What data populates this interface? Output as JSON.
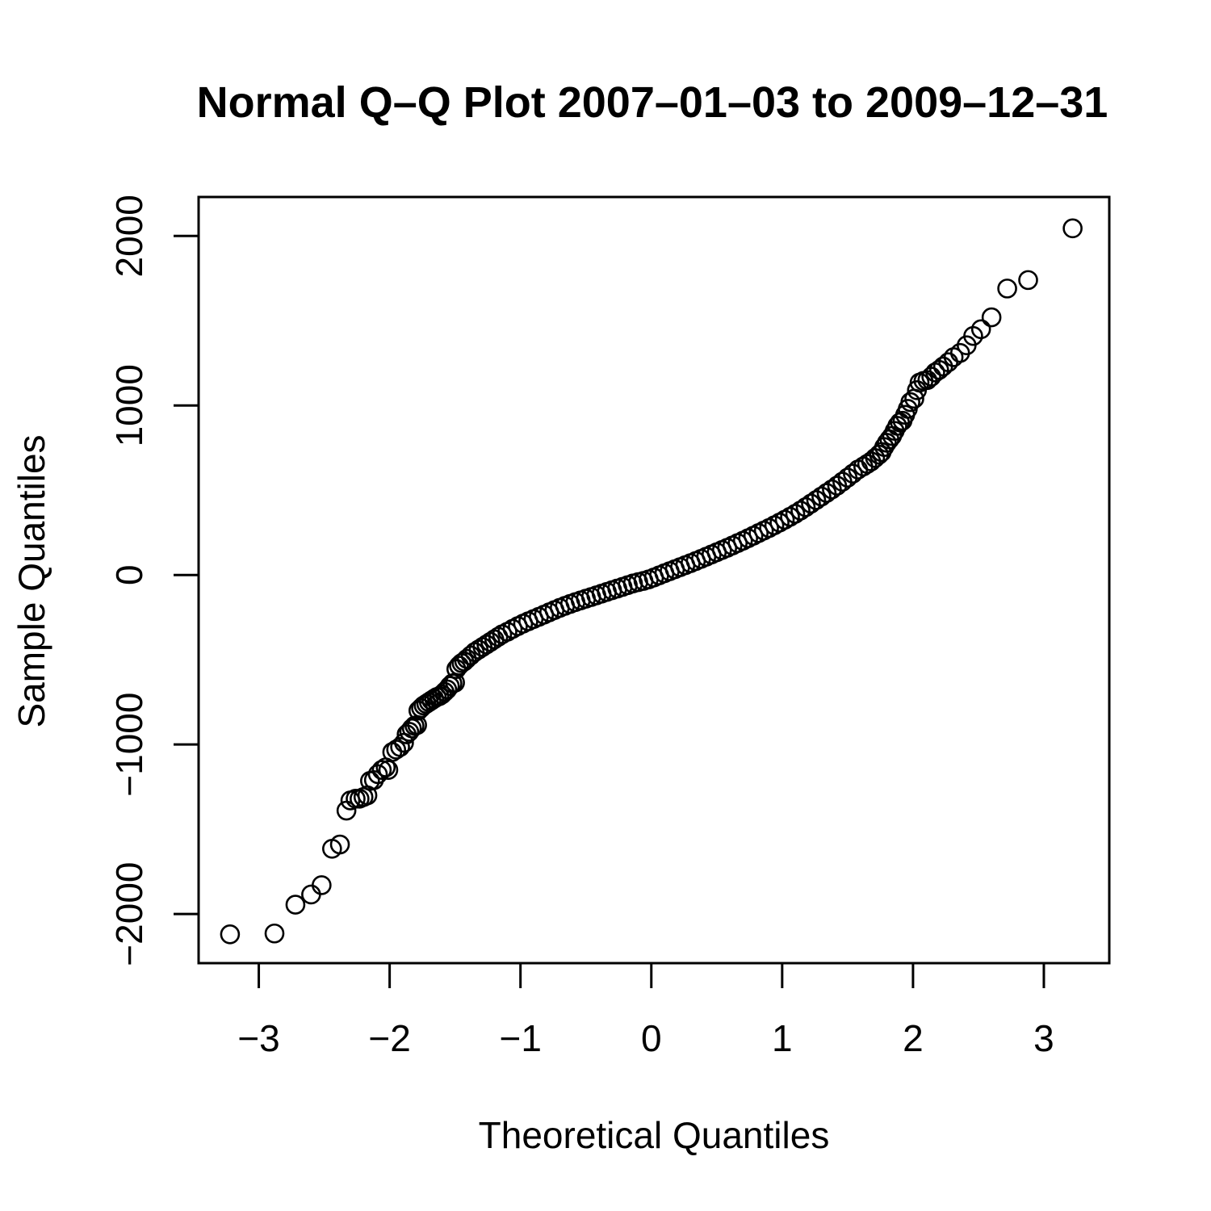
{
  "chart_data": {
    "type": "scatter",
    "title": "Normal Q–Q Plot 2007–01–03 to 2009–12–31",
    "xlabel": "Theoretical Quantiles",
    "ylabel": "Sample Quantiles",
    "xlim": [
      -3.46,
      3.5
    ],
    "ylim": [
      -2290,
      2230
    ],
    "xticks": [
      -3,
      -2,
      -1,
      0,
      1,
      2,
      3
    ],
    "xtick_labels": [
      "−3",
      "−2",
      "−1",
      "0",
      "1",
      "2",
      "3"
    ],
    "yticks": [
      -2000,
      -1000,
      0,
      1000,
      2000
    ],
    "ytick_labels": [
      "−2000",
      "−1000",
      "0",
      "1000",
      "2000"
    ],
    "grid": false,
    "legend": "none",
    "colors": {
      "points": "#000000",
      "axes": "#000000",
      "background": "#ffffff"
    },
    "series": [
      {
        "points": [
          [
            -3.22,
            -2120
          ],
          [
            -2.88,
            -2115
          ],
          [
            -2.72,
            -1945
          ],
          [
            -2.6,
            -1885
          ],
          [
            -2.52,
            -1830
          ],
          [
            -2.44,
            -1615
          ],
          [
            -2.38,
            -1590
          ],
          [
            -2.33,
            -1390
          ],
          [
            -2.3,
            -1330
          ],
          [
            -2.26,
            -1320
          ],
          [
            -2.23,
            -1320
          ],
          [
            -2.2,
            -1310
          ],
          [
            -2.17,
            -1300
          ],
          [
            -2.15,
            -1215
          ],
          [
            -2.12,
            -1210
          ],
          [
            -2.09,
            -1175
          ],
          [
            -2.06,
            -1150
          ],
          [
            -2.03,
            -1135
          ],
          [
            -2.01,
            -1150
          ],
          [
            -1.98,
            -1045
          ],
          [
            -1.95,
            -1030
          ],
          [
            -1.92,
            -1015
          ],
          [
            -1.89,
            -990
          ],
          [
            -1.87,
            -940
          ],
          [
            -1.85,
            -925
          ],
          [
            -1.83,
            -905
          ],
          [
            -1.81,
            -890
          ],
          [
            -1.79,
            -885
          ],
          [
            -1.78,
            -800
          ],
          [
            -1.76,
            -785
          ],
          [
            -1.74,
            -770
          ],
          [
            -1.72,
            -760
          ],
          [
            -1.7,
            -750
          ],
          [
            -1.68,
            -740
          ],
          [
            -1.66,
            -730
          ],
          [
            -1.64,
            -720
          ],
          [
            -1.62,
            -715
          ],
          [
            -1.6,
            -705
          ],
          [
            -1.58,
            -690
          ],
          [
            -1.56,
            -675
          ],
          [
            -1.54,
            -655
          ],
          [
            -1.52,
            -640
          ],
          [
            -1.5,
            -635
          ],
          [
            -1.49,
            -555
          ],
          [
            -1.47,
            -535
          ],
          [
            -1.45,
            -520
          ],
          [
            -1.43,
            -510
          ],
          [
            -1.41,
            -495
          ],
          [
            -1.38,
            -475
          ],
          [
            -1.35,
            -455
          ],
          [
            -1.32,
            -440
          ],
          [
            -1.29,
            -425
          ],
          [
            -1.26,
            -410
          ],
          [
            -1.23,
            -395
          ],
          [
            -1.2,
            -380
          ],
          [
            -1.17,
            -365
          ],
          [
            -1.14,
            -350
          ],
          [
            -1.1,
            -335
          ],
          [
            -1.06,
            -318
          ],
          [
            -1.02,
            -302
          ],
          [
            -0.98,
            -287
          ],
          [
            -0.94,
            -273
          ],
          [
            -0.9,
            -260
          ],
          [
            -0.86,
            -247
          ],
          [
            -0.82,
            -234
          ],
          [
            -0.78,
            -220
          ],
          [
            -0.74,
            -207
          ],
          [
            -0.7,
            -194
          ],
          [
            -0.66,
            -182
          ],
          [
            -0.62,
            -171
          ],
          [
            -0.58,
            -160
          ],
          [
            -0.54,
            -150
          ],
          [
            -0.5,
            -140
          ],
          [
            -0.46,
            -130
          ],
          [
            -0.42,
            -120
          ],
          [
            -0.38,
            -110
          ],
          [
            -0.34,
            -100
          ],
          [
            -0.3,
            -90
          ],
          [
            -0.26,
            -80
          ],
          [
            -0.22,
            -70
          ],
          [
            -0.18,
            -60
          ],
          [
            -0.14,
            -50
          ],
          [
            -0.1,
            -42
          ],
          [
            -0.06,
            -35
          ],
          [
            -0.02,
            -26
          ],
          [
            0.02,
            -15
          ],
          [
            0.06,
            -2
          ],
          [
            0.1,
            10
          ],
          [
            0.14,
            22
          ],
          [
            0.18,
            34
          ],
          [
            0.22,
            46
          ],
          [
            0.26,
            58
          ],
          [
            0.3,
            70
          ],
          [
            0.34,
            82
          ],
          [
            0.38,
            95
          ],
          [
            0.42,
            108
          ],
          [
            0.46,
            121
          ],
          [
            0.5,
            134
          ],
          [
            0.54,
            147
          ],
          [
            0.58,
            160
          ],
          [
            0.62,
            174
          ],
          [
            0.66,
            188
          ],
          [
            0.7,
            202
          ],
          [
            0.74,
            217
          ],
          [
            0.78,
            232
          ],
          [
            0.82,
            247
          ],
          [
            0.86,
            262
          ],
          [
            0.9,
            277
          ],
          [
            0.94,
            293
          ],
          [
            0.98,
            309
          ],
          [
            1.02,
            326
          ],
          [
            1.06,
            343
          ],
          [
            1.1,
            361
          ],
          [
            1.14,
            380
          ],
          [
            1.18,
            400
          ],
          [
            1.22,
            421
          ],
          [
            1.26,
            442
          ],
          [
            1.3,
            463
          ],
          [
            1.34,
            484
          ],
          [
            1.38,
            505
          ],
          [
            1.42,
            527
          ],
          [
            1.46,
            550
          ],
          [
            1.5,
            574
          ],
          [
            1.54,
            598
          ],
          [
            1.58,
            622
          ],
          [
            1.62,
            640
          ],
          [
            1.65,
            655
          ],
          [
            1.68,
            670
          ],
          [
            1.71,
            690
          ],
          [
            1.74,
            710
          ],
          [
            1.76,
            725
          ],
          [
            1.78,
            755
          ],
          [
            1.8,
            780
          ],
          [
            1.82,
            800
          ],
          [
            1.84,
            820
          ],
          [
            1.86,
            850
          ],
          [
            1.88,
            880
          ],
          [
            1.9,
            900
          ],
          [
            1.92,
            910
          ],
          [
            1.94,
            945
          ],
          [
            1.96,
            980
          ],
          [
            1.98,
            1020
          ],
          [
            2.01,
            1040
          ],
          [
            2.03,
            1090
          ],
          [
            2.05,
            1135
          ],
          [
            2.08,
            1145
          ],
          [
            2.11,
            1150
          ],
          [
            2.14,
            1170
          ],
          [
            2.17,
            1195
          ],
          [
            2.2,
            1210
          ],
          [
            2.23,
            1230
          ],
          [
            2.27,
            1255
          ],
          [
            2.31,
            1285
          ],
          [
            2.36,
            1310
          ],
          [
            2.41,
            1355
          ],
          [
            2.46,
            1410
          ],
          [
            2.52,
            1450
          ],
          [
            2.6,
            1520
          ],
          [
            2.72,
            1690
          ],
          [
            2.88,
            1740
          ],
          [
            3.22,
            2045
          ]
        ]
      }
    ]
  }
}
